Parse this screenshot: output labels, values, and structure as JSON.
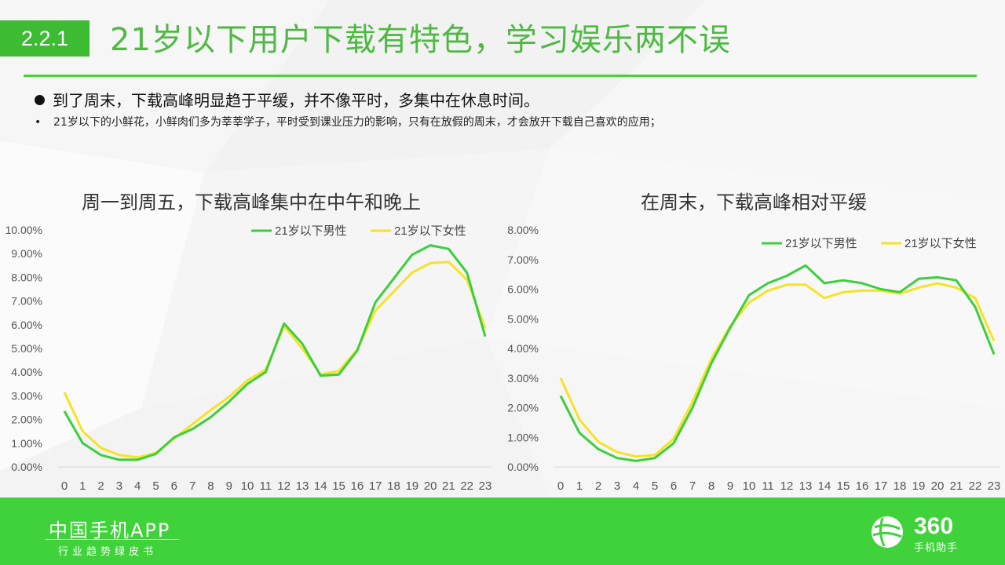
{
  "header": {
    "section": "2.2.1",
    "title": "21岁以下用户下载有特色，学习娱乐两不误"
  },
  "bullets": {
    "main": "到了周末，下载高峰明显趋于平缓，并不像平时，多集中在休息时间。",
    "sub": "21岁以下的小鲜花，小鲜肉们多为莘莘学子，平时受到课业压力的影响，只有在放假的周末，才会放开下载自己喜欢的应用；"
  },
  "colors": {
    "male": "#3ccf3c",
    "female": "#f7e225",
    "accent": "#3dbb32"
  },
  "chart_data": [
    {
      "type": "line",
      "title": "周一到周五，下载高峰集中在中午和晚上",
      "x": [
        "0",
        "1",
        "2",
        "3",
        "4",
        "5",
        "6",
        "7",
        "8",
        "9",
        "10",
        "11",
        "12",
        "13",
        "14",
        "15",
        "16",
        "17",
        "18",
        "19",
        "20",
        "21",
        "22",
        "23"
      ],
      "ylim": [
        0,
        10
      ],
      "yticks": [
        "0.00%",
        "1.00%",
        "2.00%",
        "3.00%",
        "4.00%",
        "5.00%",
        "6.00%",
        "7.00%",
        "8.00%",
        "9.00%",
        "10.00%"
      ],
      "grid": false,
      "legend": "top",
      "series": [
        {
          "name": "21岁以下男性",
          "color": "#3ccf3c",
          "values": [
            2.35,
            1.0,
            0.5,
            0.3,
            0.3,
            0.55,
            1.25,
            1.6,
            2.1,
            2.75,
            3.5,
            4.0,
            6.05,
            5.2,
            3.85,
            3.9,
            4.9,
            6.95,
            7.95,
            8.95,
            9.35,
            9.2,
            8.2,
            5.5
          ]
        },
        {
          "name": "21岁以下女性",
          "color": "#f7e225",
          "values": [
            3.15,
            1.5,
            0.8,
            0.5,
            0.4,
            0.6,
            1.2,
            1.8,
            2.4,
            2.95,
            3.65,
            4.1,
            5.95,
            5.0,
            3.9,
            4.05,
            4.95,
            6.6,
            7.4,
            8.2,
            8.6,
            8.65,
            7.9,
            5.85
          ]
        }
      ]
    },
    {
      "type": "line",
      "title": "在周末，下载高峰相对平缓",
      "x": [
        "0",
        "1",
        "2",
        "3",
        "4",
        "5",
        "6",
        "7",
        "8",
        "9",
        "10",
        "11",
        "12",
        "13",
        "14",
        "15",
        "16",
        "17",
        "18",
        "19",
        "20",
        "21",
        "22",
        "23"
      ],
      "ylim": [
        0,
        8
      ],
      "yticks": [
        "0.00%",
        "1.00%",
        "2.00%",
        "3.00%",
        "4.00%",
        "5.00%",
        "6.00%",
        "7.00%",
        "8.00%"
      ],
      "grid": false,
      "legend": "top-right",
      "series": [
        {
          "name": "21岁以下男性",
          "color": "#3ccf3c",
          "values": [
            2.4,
            1.15,
            0.6,
            0.3,
            0.2,
            0.3,
            0.8,
            2.0,
            3.5,
            4.7,
            5.8,
            6.2,
            6.45,
            6.8,
            6.2,
            6.3,
            6.2,
            6.0,
            5.9,
            6.35,
            6.4,
            6.3,
            5.4,
            3.8
          ]
        },
        {
          "name": "21岁以下女性",
          "color": "#f7e225",
          "values": [
            3.0,
            1.6,
            0.85,
            0.5,
            0.35,
            0.4,
            0.95,
            2.2,
            3.65,
            4.75,
            5.55,
            5.95,
            6.15,
            6.15,
            5.7,
            5.9,
            5.95,
            5.95,
            5.85,
            6.05,
            6.2,
            6.05,
            5.7,
            4.25
          ]
        }
      ]
    }
  ],
  "footer": {
    "brand": "中国手机APP",
    "subtitle": "行业趋势绿皮书",
    "logo_number": "360",
    "logo_text": "手机助手"
  }
}
